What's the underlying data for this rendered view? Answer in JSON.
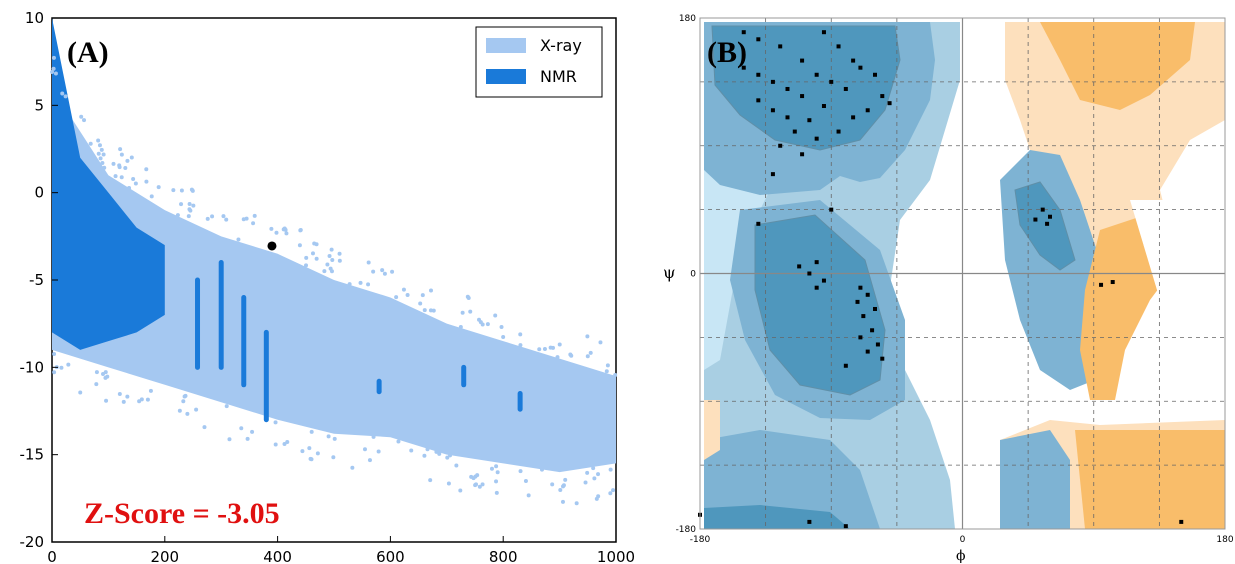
{
  "chart_data": [
    {
      "type": "scatter",
      "panel_label": "(A)",
      "annotation": "Z-Score = -3.05",
      "xlim": [
        0,
        1000
      ],
      "ylim": [
        -20,
        10
      ],
      "x_ticks": [
        0,
        200,
        400,
        600,
        800,
        1000
      ],
      "y_ticks": [
        10,
        5,
        0,
        -5,
        -10,
        -15,
        -20
      ],
      "legend_position": "top-right",
      "grid": false,
      "series": [
        {
          "name": "X-ray",
          "color": "#a5c8f1",
          "band": [
            [
              0,
              6
            ],
            [
              100,
              1
            ],
            [
              200,
              -1
            ],
            [
              300,
              -2.5
            ],
            [
              400,
              -3.5
            ],
            [
              500,
              -5
            ],
            [
              600,
              -6
            ],
            [
              700,
              -7.5
            ],
            [
              800,
              -8.5
            ],
            [
              900,
              -9.5
            ],
            [
              1000,
              -10.5
            ]
          ],
          "band_lower": [
            [
              0,
              -9
            ],
            [
              100,
              -10
            ],
            [
              200,
              -11
            ],
            [
              300,
              -12
            ],
            [
              400,
              -13
            ],
            [
              500,
              -13.8
            ],
            [
              600,
              -14
            ],
            [
              700,
              -15
            ],
            [
              800,
              -15.5
            ],
            [
              900,
              -16
            ],
            [
              1000,
              -15.5
            ]
          ]
        },
        {
          "name": "NMR",
          "color": "#1a7ad9",
          "band": [
            [
              0,
              10
            ],
            [
              50,
              2
            ],
            [
              100,
              0
            ],
            [
              150,
              -2
            ],
            [
              200,
              -3
            ]
          ],
          "band_lower": [
            [
              0,
              -8
            ],
            [
              50,
              -9
            ],
            [
              100,
              -8.5
            ],
            [
              150,
              -8
            ],
            [
              200,
              -7
            ]
          ],
          "streaks": [
            [
              258,
              -5,
              -10
            ],
            [
              300,
              -4,
              -10
            ],
            [
              340,
              -6,
              -11
            ],
            [
              380,
              -8,
              -13
            ],
            [
              580,
              -10.8,
              -11.4
            ],
            [
              730,
              -10,
              -11
            ],
            [
              830,
              -11.5,
              -12.4
            ]
          ]
        }
      ],
      "highlight_point": {
        "x": 390,
        "y": -3.05,
        "color": "#000000"
      }
    },
    {
      "type": "scatter",
      "panel_label": "(B)",
      "xlabel": "ϕ",
      "ylabel": "ψ",
      "xlim": [
        -180,
        180
      ],
      "ylim": [
        -180,
        180
      ],
      "x_ticks": [
        -180,
        0,
        180
      ],
      "y_ticks": [
        180,
        0,
        -180
      ],
      "grid": true,
      "region_colors": {
        "core": "#4f97bd",
        "allowed": "#7eb3d3",
        "generous": "#a9cfe3",
        "light": "#c8e6f5",
        "gly_core": "#f9bd6a",
        "gly_allowed": "#fde0bd"
      },
      "points": [
        [
          -150,
          170
        ],
        [
          -140,
          165
        ],
        [
          -125,
          160
        ],
        [
          -110,
          150
        ],
        [
          -95,
          170
        ],
        [
          -85,
          160
        ],
        [
          -75,
          150
        ],
        [
          -150,
          145
        ],
        [
          -140,
          140
        ],
        [
          -130,
          135
        ],
        [
          -120,
          130
        ],
        [
          -110,
          125
        ],
        [
          -100,
          140
        ],
        [
          -90,
          135
        ],
        [
          -80,
          130
        ],
        [
          -70,
          145
        ],
        [
          -60,
          140
        ],
        [
          -55,
          125
        ],
        [
          -50,
          120
        ],
        [
          -65,
          115
        ],
        [
          -75,
          110
        ],
        [
          -130,
          115
        ],
        [
          -120,
          110
        ],
        [
          -105,
          108
        ],
        [
          -95,
          118
        ],
        [
          -140,
          122
        ],
        [
          -115,
          100
        ],
        [
          -100,
          95
        ],
        [
          -125,
          90
        ],
        [
          -85,
          100
        ],
        [
          -110,
          84
        ],
        [
          -130,
          70
        ],
        [
          -140,
          35
        ],
        [
          -100,
          8
        ],
        [
          -105,
          0
        ],
        [
          -95,
          -5
        ],
        [
          -112,
          5
        ],
        [
          -90,
          45
        ],
        [
          -100,
          -10
        ],
        [
          -70,
          -10
        ],
        [
          -65,
          -15
        ],
        [
          -72,
          -20
        ],
        [
          -60,
          -25
        ],
        [
          -68,
          -30
        ],
        [
          -62,
          -40
        ],
        [
          -70,
          -45
        ],
        [
          -58,
          -50
        ],
        [
          -65,
          -55
        ],
        [
          -55,
          -60
        ],
        [
          -80,
          -65
        ],
        [
          55,
          45
        ],
        [
          60,
          40
        ],
        [
          58,
          35
        ],
        [
          50,
          38
        ],
        [
          95,
          -8
        ],
        [
          103,
          -6
        ],
        [
          150,
          -175
        ],
        [
          -180,
          -170
        ],
        [
          -105,
          -175
        ],
        [
          -80,
          -178
        ]
      ]
    }
  ]
}
